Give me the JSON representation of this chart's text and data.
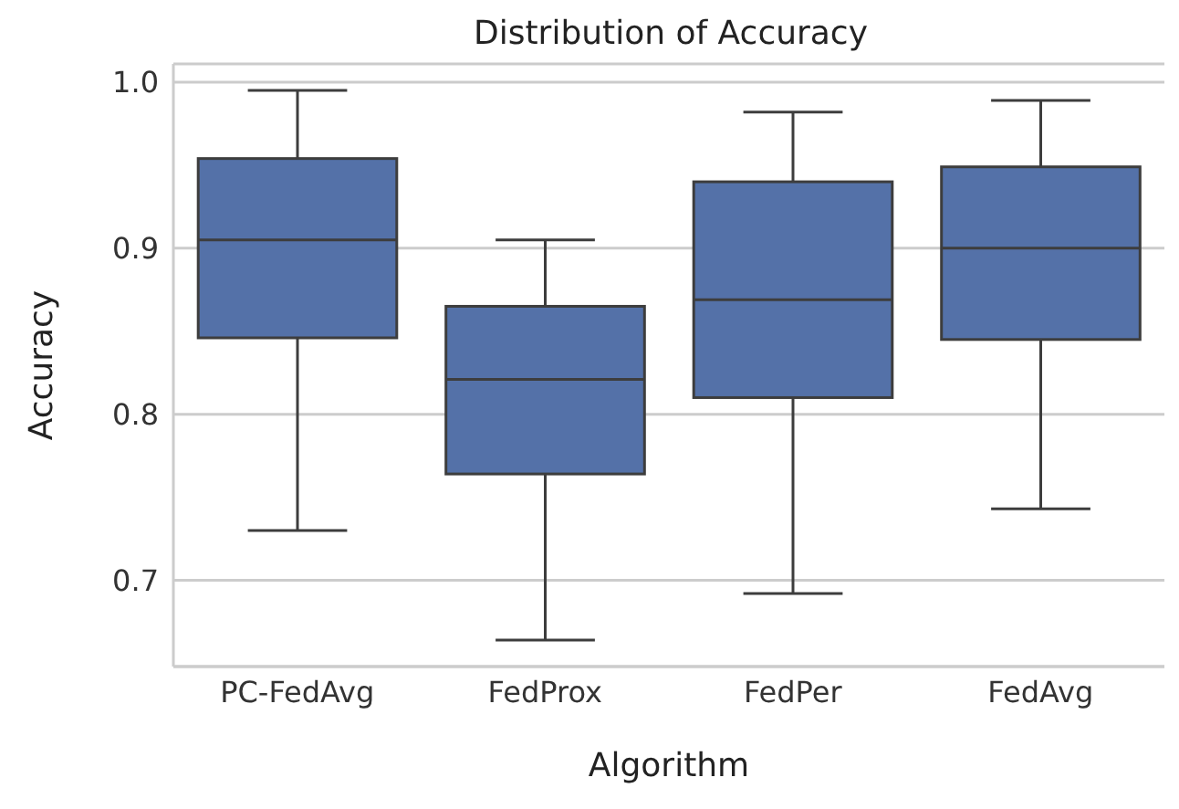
{
  "chart_data": {
    "type": "box",
    "title": "Distribution of Accuracy",
    "xlabel": "Algorithm",
    "ylabel": "Accuracy",
    "categories": [
      "PC-FedAvg",
      "FedProx",
      "FedPer",
      "FedAvg"
    ],
    "boxes": [
      {
        "low": 0.73,
        "q1": 0.846,
        "median": 0.905,
        "q3": 0.954,
        "high": 0.995
      },
      {
        "low": 0.664,
        "q1": 0.764,
        "median": 0.821,
        "q3": 0.865,
        "high": 0.905
      },
      {
        "low": 0.692,
        "q1": 0.81,
        "median": 0.869,
        "q3": 0.94,
        "high": 0.982
      },
      {
        "low": 0.743,
        "q1": 0.845,
        "median": 0.9,
        "q3": 0.949,
        "high": 0.989
      }
    ],
    "color": "#5471a8",
    "ylim": [
      0.648,
      1.011
    ],
    "yticks": [
      {
        "value": 0.7,
        "label": "0.7"
      },
      {
        "value": 0.8,
        "label": "0.8"
      },
      {
        "value": 0.9,
        "label": "0.9"
      },
      {
        "value": 1.0,
        "label": "1.0"
      }
    ],
    "grid": "y"
  }
}
